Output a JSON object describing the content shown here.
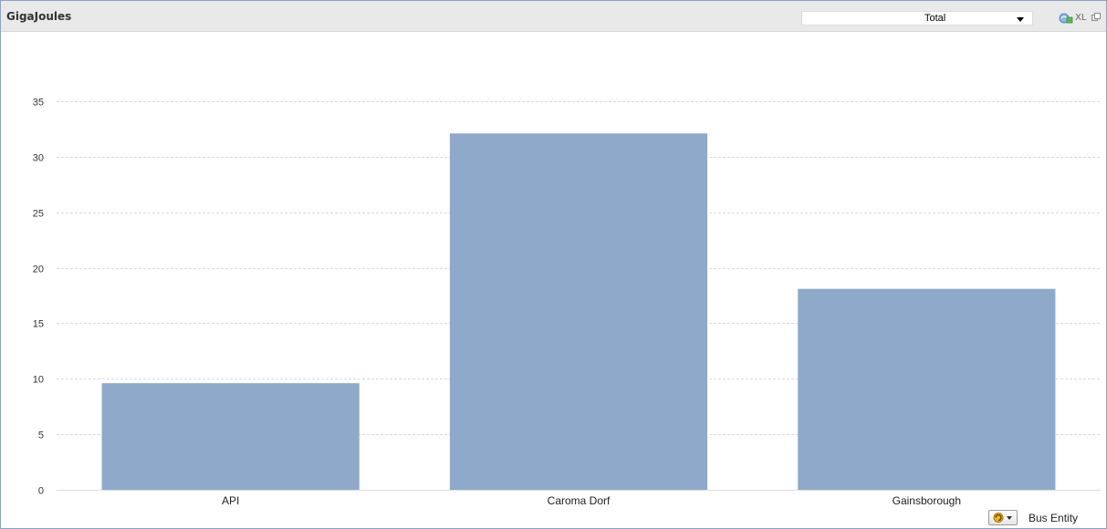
{
  "window": {
    "title": "GigaJoules",
    "selector_value": "Total",
    "export_label": "XL",
    "dimension_label": "Bus Entity"
  },
  "icons": {
    "export": "excel-export-icon",
    "restore": "restore-window-icon",
    "cycle": "cycle-group-icon",
    "dropdown": "dropdown-arrow-icon"
  },
  "colors": {
    "bar": "#8ea9c9",
    "grid": "#dcdcdc",
    "caption_bg": "#e9e9e9",
    "border": "#8aa4c2"
  },
  "chart_data": {
    "type": "bar",
    "title": "",
    "xlabel": "Bus Entity",
    "ylabel": "",
    "categories": [
      "API",
      "Caroma Dorf",
      "Gainsborough"
    ],
    "values": [
      9.6,
      32.1,
      18.1
    ],
    "ylim": [
      0,
      35
    ],
    "yticks": [
      0,
      5,
      10,
      15,
      20,
      25,
      30,
      35
    ],
    "grid": true,
    "legend": false
  }
}
